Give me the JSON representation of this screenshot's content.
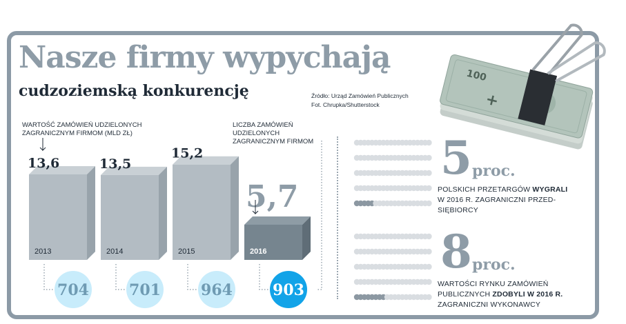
{
  "header": {
    "title": "Nasze firmy wypychają",
    "subtitle": "cudzoziemską konkurencję",
    "source_line1": "Źródło: Urząd Zamówień Publicznych",
    "source_line2": "Fot. Chrupka/Shutterstock"
  },
  "labels": {
    "value_label_line1": "WARTOŚĆ ZAMÓWIEŃ UDZIELONYCH",
    "value_label_line2": "ZAGRANICZNYM FIRMOM (MLD ZŁ)",
    "count_label_line1": "LICZBA ZAMÓWIEŃ",
    "count_label_line2": "UDZIELONYCH",
    "count_label_line3": "ZAGRANICZNYM FIRMOM"
  },
  "stats": [
    {
      "number": "5",
      "unit": "proc.",
      "line1_pre": "POLSKICH PRZETARGÓW ",
      "line1_bold": "WYGRALI",
      "line2": "W 2016 R. ZAGRANICZNI PRZED-",
      "line3": "SIĘBIORCY",
      "highlighted_dots": 5,
      "total_dots": 100
    },
    {
      "number": "8",
      "unit": "proc.",
      "line1": "WARTOŚCI RYNKU ZAMÓWIEŃ",
      "line2_pre": "PUBLICZNYCH ",
      "line2_bold": "ZDOBYLI W 2016 R.",
      "line3": "ZAGRANICZNI WYKONAWCY",
      "highlighted_dots": 8,
      "total_dots": 100
    }
  ],
  "colors": {
    "title_gray": "#8e9ca7",
    "bar_gray": "#b3bcc3",
    "bar_dark": "#76858f",
    "circle_light": "#c8ecfb",
    "circle_bright": "#12a3e8",
    "dot_gray": "#d9dde1",
    "dot_dark": "#8c98a2",
    "frame": "#8c9aa6"
  },
  "chart_data": {
    "type": "bar",
    "categories": [
      "2013",
      "2014",
      "2015",
      "2016"
    ],
    "series": [
      {
        "name": "WARTOŚĆ ZAMÓWIEŃ UDZIELONYCH ZAGRANICZNYM FIRMOM (MLD ZŁ)",
        "values": [
          13.6,
          13.5,
          15.2,
          5.7
        ]
      },
      {
        "name": "LICZBA ZAMÓWIEŃ UDZIELONYCH ZAGRANICZNYM FIRMOM",
        "values": [
          704,
          701,
          964,
          903
        ]
      }
    ],
    "value_labels": [
      "13,6",
      "13,5",
      "15,2",
      "5,7"
    ],
    "count_labels": [
      "704",
      "701",
      "964",
      "903"
    ],
    "highlight_category": "2016"
  }
}
